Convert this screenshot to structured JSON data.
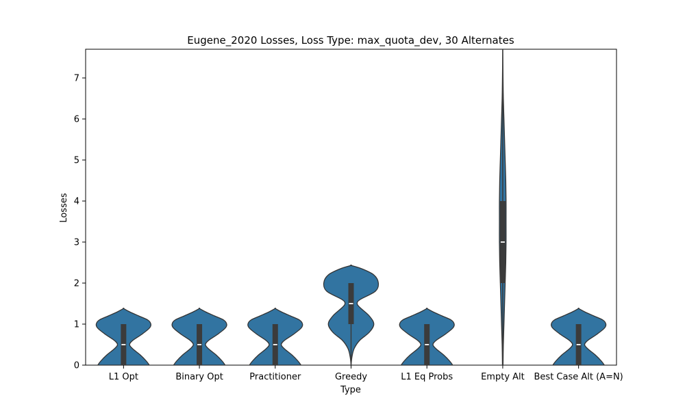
{
  "chart_data": {
    "type": "violin",
    "title": "Eugene_2020 Losses, Loss Type: max_quota_dev, 30 Alternates",
    "xlabel": "Type",
    "ylabel": "Losses",
    "ylim": [
      0,
      7.7
    ],
    "y_ticks": [
      0,
      1,
      2,
      3,
      4,
      5,
      6,
      7
    ],
    "grid": false,
    "legend": "none",
    "categories": [
      "L1 Opt",
      "Binary Opt",
      "Practitioner",
      "Greedy",
      "L1 Eq Probs",
      "Empty Alt",
      "Best Case Alt (A=N)"
    ],
    "series": [
      {
        "values_summary": [
          {
            "q1": 0,
            "median": 0.5,
            "q3": 1,
            "min": 0,
            "max": 1
          },
          {
            "q1": 0,
            "median": 0.5,
            "q3": 1,
            "min": 0,
            "max": 1
          },
          {
            "q1": 0,
            "median": 0.5,
            "q3": 1,
            "min": 0,
            "max": 1
          },
          {
            "q1": 1,
            "median": 1.5,
            "q3": 2,
            "min": 0,
            "max": 2
          },
          {
            "q1": 0,
            "median": 0.5,
            "q3": 1,
            "min": 0,
            "max": 1
          },
          {
            "q1": 2,
            "median": 3,
            "q3": 4,
            "min": 0,
            "max": 7.7
          },
          {
            "q1": 0,
            "median": 0.5,
            "q3": 1,
            "min": 0,
            "max": 1
          }
        ]
      }
    ],
    "density_profiles": [
      [
        [
          0,
          0.85
        ],
        [
          0.1,
          0.75
        ],
        [
          0.25,
          0.55
        ],
        [
          0.4,
          0.3
        ],
        [
          0.5,
          0.2
        ],
        [
          0.6,
          0.3
        ],
        [
          0.75,
          0.6
        ],
        [
          0.9,
          0.85
        ],
        [
          1.0,
          0.9
        ],
        [
          1.1,
          0.8
        ],
        [
          1.2,
          0.5
        ],
        [
          1.3,
          0.2
        ],
        [
          1.38,
          0
        ]
      ],
      [
        [
          0,
          0.85
        ],
        [
          0.1,
          0.75
        ],
        [
          0.25,
          0.55
        ],
        [
          0.4,
          0.3
        ],
        [
          0.5,
          0.2
        ],
        [
          0.6,
          0.3
        ],
        [
          0.75,
          0.6
        ],
        [
          0.9,
          0.85
        ],
        [
          1.0,
          0.9
        ],
        [
          1.1,
          0.8
        ],
        [
          1.2,
          0.5
        ],
        [
          1.3,
          0.2
        ],
        [
          1.38,
          0
        ]
      ],
      [
        [
          0,
          0.85
        ],
        [
          0.1,
          0.75
        ],
        [
          0.25,
          0.55
        ],
        [
          0.4,
          0.3
        ],
        [
          0.5,
          0.2
        ],
        [
          0.6,
          0.3
        ],
        [
          0.75,
          0.6
        ],
        [
          0.9,
          0.85
        ],
        [
          1.0,
          0.9
        ],
        [
          1.1,
          0.8
        ],
        [
          1.2,
          0.5
        ],
        [
          1.3,
          0.2
        ],
        [
          1.38,
          0
        ]
      ],
      [
        [
          0,
          0
        ],
        [
          0.2,
          0.03
        ],
        [
          0.4,
          0.1
        ],
        [
          0.6,
          0.28
        ],
        [
          0.8,
          0.6
        ],
        [
          1.0,
          0.75
        ],
        [
          1.2,
          0.6
        ],
        [
          1.4,
          0.3
        ],
        [
          1.5,
          0.2
        ],
        [
          1.6,
          0.3
        ],
        [
          1.8,
          0.8
        ],
        [
          2.0,
          0.9
        ],
        [
          2.2,
          0.75
        ],
        [
          2.35,
          0.35
        ],
        [
          2.43,
          0
        ]
      ],
      [
        [
          0,
          0.85
        ],
        [
          0.1,
          0.75
        ],
        [
          0.25,
          0.55
        ],
        [
          0.4,
          0.3
        ],
        [
          0.5,
          0.2
        ],
        [
          0.6,
          0.3
        ],
        [
          0.75,
          0.6
        ],
        [
          0.9,
          0.85
        ],
        [
          1.0,
          0.9
        ],
        [
          1.1,
          0.8
        ],
        [
          1.2,
          0.5
        ],
        [
          1.3,
          0.2
        ],
        [
          1.38,
          0
        ]
      ],
      [
        [
          0,
          0.01
        ],
        [
          0.5,
          0.02
        ],
        [
          1,
          0.04
        ],
        [
          1.5,
          0.06
        ],
        [
          2,
          0.08
        ],
        [
          2.5,
          0.1
        ],
        [
          3,
          0.11
        ],
        [
          3.5,
          0.11
        ],
        [
          4,
          0.11
        ],
        [
          4.5,
          0.1
        ],
        [
          5,
          0.08
        ],
        [
          5.5,
          0.06
        ],
        [
          6,
          0.04
        ],
        [
          6.5,
          0.02
        ],
        [
          7,
          0.01
        ],
        [
          7.7,
          0
        ]
      ],
      [
        [
          0,
          0.85
        ],
        [
          0.1,
          0.75
        ],
        [
          0.25,
          0.55
        ],
        [
          0.4,
          0.3
        ],
        [
          0.5,
          0.2
        ],
        [
          0.6,
          0.3
        ],
        [
          0.75,
          0.6
        ],
        [
          0.9,
          0.85
        ],
        [
          1.0,
          0.9
        ],
        [
          1.1,
          0.8
        ],
        [
          1.2,
          0.5
        ],
        [
          1.3,
          0.2
        ],
        [
          1.38,
          0
        ]
      ]
    ],
    "colors": {
      "violin_fill": "#3274a1",
      "violin_stroke": "#333333",
      "box_fill": "#3b3b3b",
      "median": "#ffffff"
    }
  }
}
